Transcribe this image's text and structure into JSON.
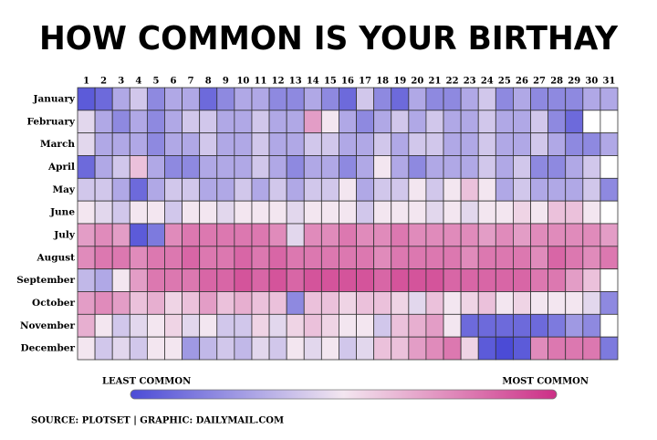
{
  "chart_data": {
    "type": "heatmap",
    "title": "HOW COMMON IS YOUR BIRTHAY",
    "x": [
      1,
      2,
      3,
      4,
      5,
      6,
      7,
      8,
      9,
      10,
      11,
      12,
      13,
      14,
      15,
      16,
      17,
      18,
      19,
      20,
      21,
      22,
      23,
      24,
      25,
      26,
      27,
      28,
      29,
      30,
      31
    ],
    "categories": [
      "January",
      "February",
      "March",
      "April",
      "May",
      "June",
      "July",
      "August",
      "September",
      "October",
      "November",
      "December"
    ],
    "values": [
      [
        0.05,
        0.1,
        0.3,
        0.4,
        0.2,
        0.3,
        0.3,
        0.1,
        0.2,
        0.3,
        0.3,
        0.2,
        0.2,
        0.3,
        0.2,
        0.1,
        0.4,
        0.2,
        0.1,
        0.3,
        0.2,
        0.2,
        0.3,
        0.4,
        0.2,
        0.3,
        0.2,
        0.2,
        0.2,
        0.3,
        0.3
      ],
      [
        0.45,
        0.3,
        0.2,
        0.3,
        0.2,
        0.3,
        0.4,
        0.4,
        0.3,
        0.3,
        0.4,
        0.3,
        0.3,
        0.7,
        0.5,
        0.3,
        0.2,
        0.3,
        0.4,
        0.3,
        0.4,
        0.3,
        0.3,
        0.4,
        0.3,
        0.3,
        0.4,
        0.2,
        0.1,
        null,
        null
      ],
      [
        0.45,
        0.3,
        0.3,
        0.3,
        0.2,
        0.3,
        0.3,
        0.4,
        0.3,
        0.3,
        0.4,
        0.3,
        0.3,
        0.4,
        0.4,
        0.3,
        0.3,
        0.4,
        0.3,
        0.4,
        0.4,
        0.3,
        0.3,
        0.4,
        0.3,
        0.3,
        0.4,
        0.3,
        0.2,
        0.2,
        0.3
      ],
      [
        0.1,
        0.3,
        0.4,
        0.6,
        0.3,
        0.2,
        0.2,
        0.3,
        0.3,
        0.3,
        0.4,
        0.3,
        0.2,
        0.3,
        0.3,
        0.2,
        0.3,
        0.5,
        0.3,
        0.2,
        0.3,
        0.3,
        0.3,
        0.4,
        0.3,
        0.4,
        0.2,
        0.2,
        0.3,
        0.4,
        null
      ],
      [
        0.4,
        0.4,
        0.3,
        0.1,
        0.3,
        0.4,
        0.4,
        0.3,
        0.3,
        0.4,
        0.3,
        0.4,
        0.3,
        0.4,
        0.4,
        0.5,
        0.3,
        0.4,
        0.4,
        0.5,
        0.4,
        0.5,
        0.6,
        0.5,
        0.3,
        0.4,
        0.3,
        0.3,
        0.3,
        0.4,
        0.2
      ],
      [
        0.5,
        0.45,
        0.4,
        0.5,
        0.5,
        0.4,
        0.5,
        0.5,
        0.45,
        0.5,
        0.5,
        0.5,
        0.45,
        0.5,
        0.5,
        0.5,
        0.4,
        0.5,
        0.5,
        0.5,
        0.45,
        0.5,
        0.45,
        0.5,
        0.5,
        0.55,
        0.5,
        0.6,
        0.6,
        0.5,
        null
      ],
      [
        0.7,
        0.75,
        0.7,
        0.05,
        0.15,
        0.75,
        0.8,
        0.8,
        0.8,
        0.8,
        0.8,
        0.75,
        0.45,
        0.75,
        0.75,
        0.8,
        0.75,
        0.75,
        0.8,
        0.75,
        0.75,
        0.75,
        0.75,
        0.7,
        0.75,
        0.7,
        0.75,
        0.75,
        0.75,
        0.75,
        0.7
      ],
      [
        0.75,
        0.8,
        0.8,
        0.75,
        0.8,
        0.8,
        0.85,
        0.8,
        0.8,
        0.85,
        0.8,
        0.85,
        0.8,
        0.8,
        0.8,
        0.8,
        0.8,
        0.75,
        0.8,
        0.8,
        0.8,
        0.8,
        0.75,
        0.8,
        0.8,
        0.8,
        0.75,
        0.85,
        0.8,
        0.75,
        0.8
      ],
      [
        0.35,
        0.3,
        0.5,
        0.7,
        0.8,
        0.8,
        0.8,
        0.85,
        0.85,
        0.9,
        0.85,
        0.9,
        0.85,
        0.9,
        0.9,
        0.9,
        0.9,
        0.85,
        0.9,
        0.9,
        0.9,
        0.85,
        0.85,
        0.85,
        0.85,
        0.85,
        0.8,
        0.8,
        0.7,
        0.6,
        null
      ],
      [
        0.7,
        0.75,
        0.7,
        0.6,
        0.65,
        0.55,
        0.6,
        0.7,
        0.6,
        0.65,
        0.6,
        0.6,
        0.2,
        0.6,
        0.6,
        0.55,
        0.6,
        0.6,
        0.55,
        0.45,
        0.6,
        0.5,
        0.55,
        0.6,
        0.5,
        0.55,
        0.5,
        0.5,
        0.5,
        0.45,
        0.2
      ],
      [
        0.65,
        0.5,
        0.4,
        0.45,
        0.5,
        0.55,
        0.45,
        0.5,
        0.4,
        0.4,
        0.55,
        0.45,
        0.55,
        0.6,
        0.55,
        0.5,
        0.5,
        0.4,
        0.6,
        0.65,
        0.7,
        0.5,
        0.1,
        0.1,
        0.1,
        0.1,
        0.1,
        0.15,
        0.25,
        0.2,
        null
      ],
      [
        0.5,
        0.4,
        0.45,
        0.4,
        0.5,
        0.5,
        0.25,
        0.35,
        0.4,
        0.35,
        0.45,
        0.4,
        0.5,
        0.45,
        0.5,
        0.4,
        0.45,
        0.6,
        0.6,
        0.7,
        0.75,
        0.8,
        0.55,
        0.05,
        0.0,
        0.05,
        0.75,
        0.8,
        0.8,
        0.8,
        0.15
      ]
    ],
    "zlim": [
      0,
      1
    ],
    "colors": [
      "#4b4bd6",
      "#f3e6f0",
      "#cc2f86"
    ],
    "legend_labels": [
      "LEAST COMMON",
      "MOST COMMON"
    ],
    "source": "SOURCE: PLOTSET | GRAPHIC: DAILYMAIL.COM"
  }
}
